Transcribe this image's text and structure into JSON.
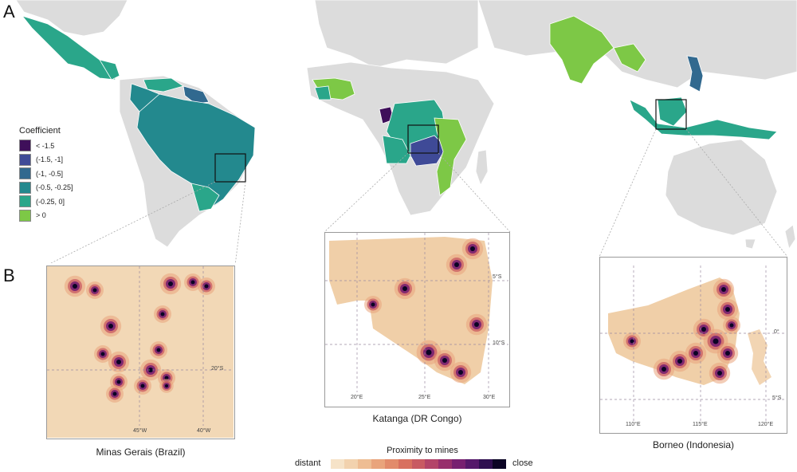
{
  "panels": {
    "a": "A",
    "b": "B"
  },
  "coefficient_legend": {
    "title": "Coefficient",
    "items": [
      {
        "label": "< -1.5",
        "color": "#3f0f5a"
      },
      {
        "label": "(-1.5, -1]",
        "color": "#3f4a97"
      },
      {
        "label": "(-1, -0.5]",
        "color": "#31698f"
      },
      {
        "label": "(-0.5, -0.25]",
        "color": "#23898e"
      },
      {
        "label": "(-0.25, 0]",
        "color": "#2aa68a"
      },
      {
        "label": "> 0",
        "color": "#7dc846"
      }
    ]
  },
  "proximity_legend": {
    "title": "Proximity to mines",
    "low_label": "distant",
    "high_label": "close",
    "colors": [
      "#f6e3c8",
      "#f2d2ae",
      "#eebd93",
      "#e9a47c",
      "#e28b6b",
      "#d8705f",
      "#c85a62",
      "#b34468",
      "#972f6c",
      "#772070",
      "#55186a",
      "#2f0f50",
      "#0b0424"
    ]
  },
  "insets": [
    {
      "caption": "Minas Gerais (Brazil)",
      "x_ticks": [
        "45°W",
        "40°W"
      ],
      "y_ticks": [
        "20°S"
      ]
    },
    {
      "caption": "Katanga (DR Congo)",
      "x_ticks": [
        "20°E",
        "25°E",
        "30°E"
      ],
      "y_ticks": [
        "5°S",
        "10°S"
      ]
    },
    {
      "caption": "Borneo (Indonesia)",
      "x_ticks": [
        "110°E",
        "115°E",
        "120°E"
      ],
      "y_ticks": [
        "0°",
        "5°S"
      ]
    }
  ],
  "colors": {
    "land": "#dcdcdc",
    "border": "#ffffff",
    "inset_border": "#9a9a9a"
  }
}
